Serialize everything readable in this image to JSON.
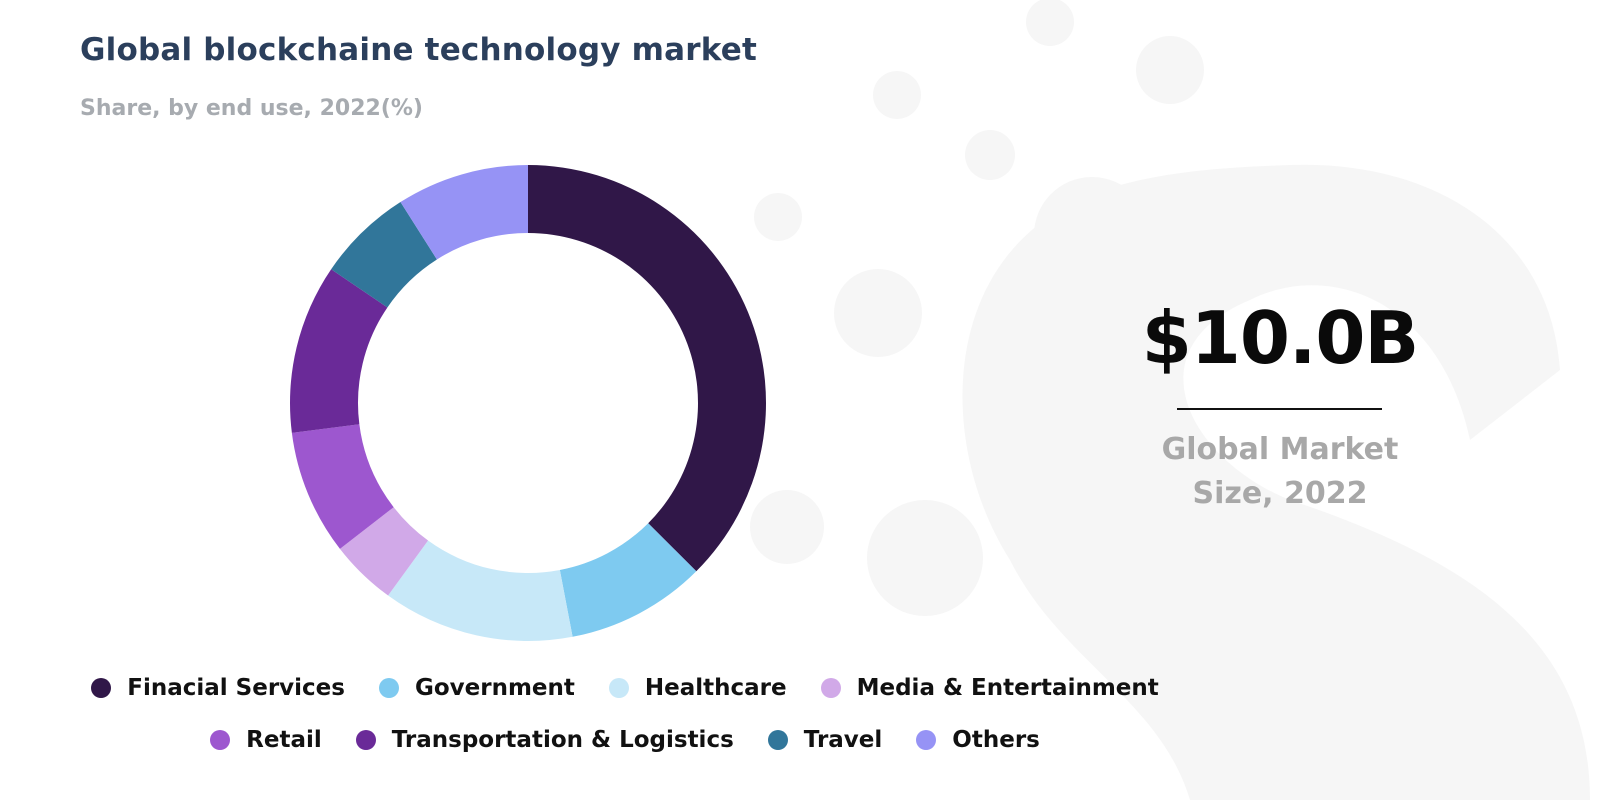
{
  "header": {
    "title": "Global blockchaine technology market",
    "subtitle": "Share, by end use, 2022(%)"
  },
  "kpi": {
    "value": "$10.0B",
    "label_line1": "Global Market",
    "label_line2": "Size, 2022"
  },
  "chart_data": {
    "type": "pie",
    "subtype": "donut",
    "title": "Global blockchaine technology market",
    "subtitle": "Share, by end use, 2022(%)",
    "categories": [
      "Finacial Services",
      "Government",
      "Healthcare",
      "Media & Entertainment",
      "Retail",
      "Transportation & Logistics",
      "Travel",
      "Others"
    ],
    "values": [
      37.5,
      9.5,
      13.0,
      4.5,
      8.5,
      11.5,
      6.5,
      9.0
    ],
    "colors": [
      "#301748",
      "#7ecaf0",
      "#c7e8f8",
      "#d1a9e8",
      "#9d57cf",
      "#6a2a98",
      "#31769a",
      "#9693f5"
    ],
    "legend_position": "bottom"
  }
}
